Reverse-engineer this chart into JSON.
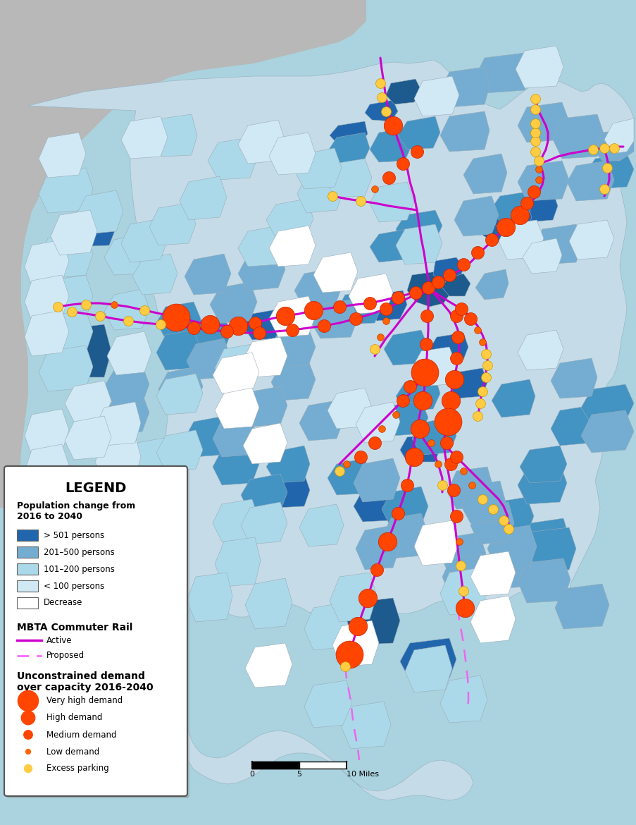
{
  "outer_bg": "#b8b8b8",
  "water_color": "#aad3df",
  "legend": {
    "title": "LEGEND",
    "pop_title": "Population change from\n2016 to 2040",
    "pop_categories": [
      {
        "label": "> 501 persons",
        "color": "#2166ac"
      },
      {
        "label": "201–500 persons",
        "color": "#74add1"
      },
      {
        "label": "101–200 persons",
        "color": "#abd9e9"
      },
      {
        "label": "< 100 persons",
        "color": "#d1e9f5"
      },
      {
        "label": "Decrease",
        "color": "#ffffff"
      }
    ],
    "rail_title": "MBTA Commuter Rail",
    "rail_active_color": "#cc00cc",
    "rail_proposed_color": "#ff66ff",
    "demand_title": "Unconstrained demand\nover capacity 2016-2040",
    "demand_categories": [
      {
        "label": "Very high demand",
        "color": "#ff4500",
        "size": 22
      },
      {
        "label": "High demand",
        "color": "#ff4500",
        "size": 15
      },
      {
        "label": "Medium demand",
        "color": "#ff4500",
        "size": 10
      },
      {
        "label": "Low demand",
        "color": "#ff6600",
        "size": 6
      },
      {
        "label": "Excess parking",
        "color": "#ffcc44",
        "size": 9
      }
    ]
  }
}
